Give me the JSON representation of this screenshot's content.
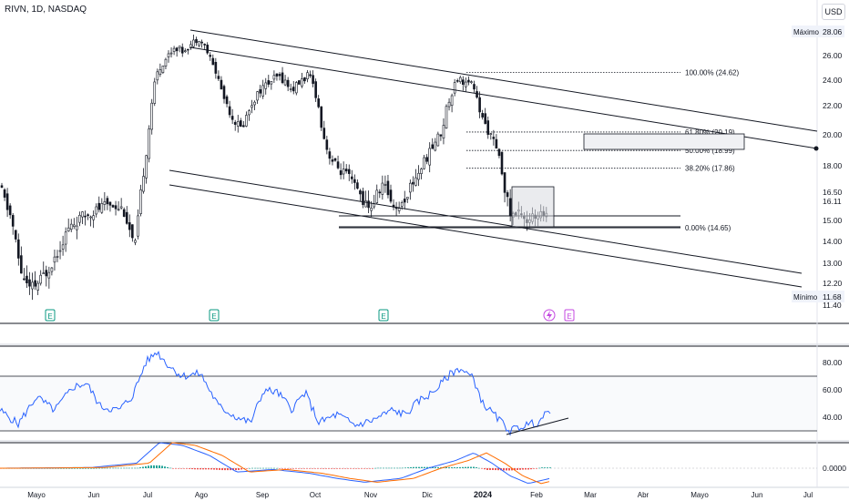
{
  "header": {
    "ticker": "RIVN, 1D, NASDAQ",
    "currency": "USD"
  },
  "chart_data": {
    "type": "candlestick",
    "price_axis": {
      "ticks": [
        "26.00",
        "24.00",
        "22.00",
        "20.00",
        "18.00",
        "16.50",
        "15.00",
        "14.00",
        "13.00",
        "12.20",
        "11.40"
      ],
      "tick_values": [
        26,
        24,
        22,
        20,
        18,
        16.5,
        15,
        14,
        13,
        12.2,
        11.4
      ],
      "special_labels": [
        {
          "text": "28.06",
          "value": 28.06,
          "tag": "Máximo"
        },
        {
          "text": "16.11",
          "value": 16.11,
          "tag": ""
        },
        {
          "text": "11.68",
          "value": 11.68,
          "tag": "Mínimo"
        }
      ]
    },
    "time_axis": {
      "labels": [
        "Mayo",
        "Jun",
        "Jul",
        "Ago",
        "Sep",
        "Oct",
        "Nov",
        "Dic",
        "2024",
        "Feb",
        "Mar",
        "Abr",
        "Mayo",
        "Jun",
        "Jul"
      ],
      "bold": [
        "2024"
      ]
    },
    "fibonacci": [
      {
        "label": "100.00% (24.62)",
        "value": 24.62
      },
      {
        "label": "61.80% (20.19)",
        "value": 20.19
      },
      {
        "label": "50.00% (18.99)",
        "value": 18.99
      },
      {
        "label": "38.20% (17.86)",
        "value": 17.86
      },
      {
        "label": "0.00% (14.65)",
        "value": 14.65
      }
    ],
    "earnings_markers": [
      "E",
      "E",
      "E",
      "E"
    ],
    "rsi": {
      "ticks": [
        "80.00",
        "60.00",
        "40.00"
      ],
      "tick_values": [
        80,
        60,
        40
      ],
      "upper": 70,
      "lower": 30
    },
    "macd": {
      "ticks": [
        "0.0000"
      ]
    },
    "colors": {
      "up": "#26a69a",
      "down": "#ef5350",
      "line": "#2962ff",
      "signal": "#ff6d00",
      "ink": "#131722"
    }
  }
}
